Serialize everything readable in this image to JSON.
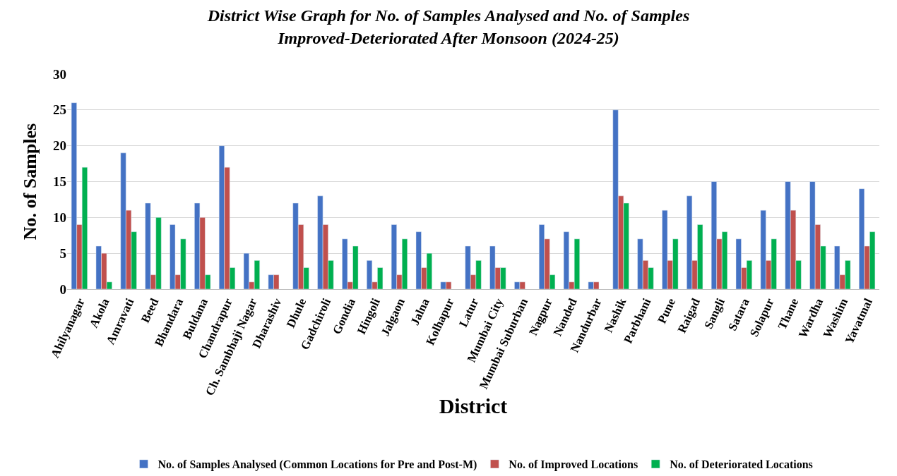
{
  "chart_data": {
    "type": "bar",
    "title": "District Wise Graph for No. of Samples Analysed and No. of Samples\nImproved-Deteriorated After Monsoon (2024-25)",
    "xlabel": "District",
    "ylabel": "No. of Samples",
    "categories": [
      "Ahilyanagar",
      "Akola",
      "Amravati",
      "Beed",
      "Bhandara",
      "Buldana",
      "Chandrapur",
      "Ch. Sambhaji Nagar",
      "Dharashiv",
      "Dhule",
      "Gadchiroli",
      "Gondia",
      "Hingoli",
      "Jalgaon",
      "Jalna",
      "Kolhapur",
      "Latur",
      "Mumbai City",
      "Mumbai Suburban",
      "Nagpur",
      "Nanded",
      "Nandurbar",
      "Nashik",
      "Parbhani",
      "Pune",
      "Raigad",
      "Sangli",
      "Satara",
      "Solapur",
      "Thane",
      "Wardha",
      "Washim",
      "Yavatmal"
    ],
    "series": [
      {
        "name": "No. of Samples Analysed (Common Locations for Pre and Post-M)",
        "color": "#4472c4",
        "values": [
          26,
          6,
          19,
          12,
          9,
          12,
          20,
          5,
          2,
          12,
          13,
          7,
          4,
          9,
          8,
          1,
          6,
          6,
          1,
          9,
          8,
          1,
          25,
          7,
          11,
          13,
          15,
          7,
          11,
          15,
          15,
          6,
          14
        ]
      },
      {
        "name": "No. of Improved Locations",
        "color": "#c0504d",
        "values": [
          9,
          5,
          11,
          2,
          2,
          10,
          17,
          1,
          2,
          9,
          9,
          1,
          1,
          2,
          3,
          1,
          2,
          3,
          1,
          7,
          1,
          1,
          13,
          4,
          4,
          4,
          7,
          3,
          4,
          11,
          9,
          2,
          6
        ]
      },
      {
        "name": "No. of Deteriorated Locations",
        "color": "#00b050",
        "values": [
          17,
          1,
          8,
          10,
          7,
          2,
          3,
          4,
          null,
          3,
          4,
          6,
          3,
          7,
          5,
          null,
          4,
          3,
          null,
          2,
          7,
          null,
          12,
          3,
          7,
          9,
          8,
          4,
          7,
          4,
          6,
          4,
          8
        ]
      }
    ],
    "ylim": [
      0,
      30
    ],
    "yticks": [
      0,
      5,
      10,
      15,
      20,
      25,
      30
    ],
    "grid": "y",
    "legend": "bottom"
  }
}
